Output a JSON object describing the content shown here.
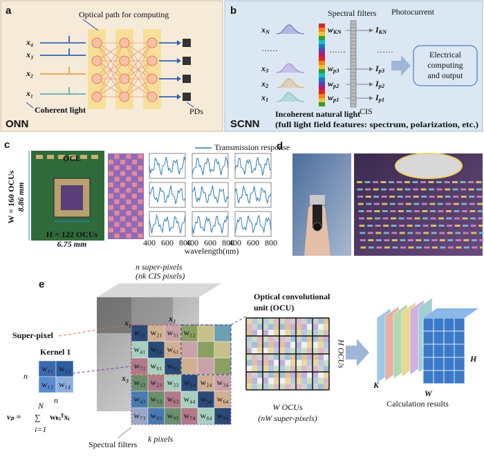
{
  "panel_a": {
    "label": "a",
    "caption": "Optical path for computing",
    "inputs": [
      "x₄",
      "x₃",
      "x₂",
      "x₁"
    ],
    "source": "Coherent light",
    "detectors": "PDs",
    "name": "ONN"
  },
  "panel_b": {
    "label": "b",
    "filters_caption": "Spectral filters",
    "current_caption": "Photocurrent",
    "inputs": [
      {
        "base": "x",
        "sub": "N"
      },
      {
        "base": "x",
        "sub": "3"
      },
      {
        "base": "x",
        "sub": "2"
      },
      {
        "base": "x",
        "sub": "1"
      }
    ],
    "weights": [
      {
        "base": "w",
        "sub": "KN"
      },
      {
        "base": "w",
        "sub": "p3"
      },
      {
        "base": "w",
        "sub": "p2"
      },
      {
        "base": "w",
        "sub": "p1"
      }
    ],
    "currents": [
      {
        "base": "I",
        "sub": "KN"
      },
      {
        "base": "I",
        "sub": "p3"
      },
      {
        "base": "I",
        "sub": "p2"
      },
      {
        "base": "I",
        "sub": "p1"
      }
    ],
    "ellipsis": "······",
    "output_box": [
      "Electrical",
      "computing",
      "and output"
    ],
    "sensor": "CIS",
    "source": "Incoherent natural light",
    "features": "(full light field features:  spectrum, polarization, etc.)",
    "name": "SCNN"
  },
  "panel_c": {
    "label": "c",
    "layer": "OCL",
    "width_ocus": "W = 160 OCUs",
    "width_mm": "8.86 mm",
    "height_ocus": "H = 122 OCUs",
    "height_mm": "6.75 mm",
    "legend": "Transmission response",
    "xticks": [
      400,
      600,
      800
    ],
    "xlabel": "wavelength(nm)"
  },
  "panel_d": {
    "label": "d"
  },
  "panel_e": {
    "label": "e",
    "super_pixels": "n super-pixels",
    "cis_pixels": "(nk CIS pixels)",
    "super_pixel": "Super-pixel",
    "kernel": "Kernel 1",
    "kernel_weights": [
      "w₁₁",
      "w₁₂",
      "w₁₃",
      "w₁₄"
    ],
    "kernel_size": "n",
    "inputs": [
      "x₁",
      "x₂",
      "x₃"
    ],
    "ocu": [
      "Optical convolutional",
      "unit (OCU)"
    ],
    "filter_grid": [
      [
        "w₁₁",
        "w₂₁",
        "w₃₁",
        "w₁₂",
        null,
        null
      ],
      [
        "w₄₁",
        "w₅₁",
        "w₆₁",
        null,
        null,
        null
      ],
      [
        "w₇₁",
        "w₈₁",
        "w₉₁",
        null,
        null,
        null
      ],
      [
        "w₁₃",
        "w₂₃",
        "w₃₃",
        "w₁₄",
        "w₂₄",
        "w₃₄"
      ],
      [
        "w₄₃",
        "w₅₃",
        "w₆₃",
        "w₄₄",
        "w₅₄",
        "w₆₄"
      ],
      [
        "w₇₃",
        "w₈₃",
        "w₉₃",
        "w₇₄",
        "w₈₄",
        "w₉₄"
      ]
    ],
    "height_ocus": "H OCUs",
    "width_ocus": "W OCUs",
    "width_pixels": "(nW super-pixels)",
    "result_k": "K",
    "result_w": "W",
    "result_h": "H",
    "results": "Calculation results",
    "formula": {
      "lhs": "vₚ =",
      "sum": "∑",
      "upper": "N",
      "lower": "i=1",
      "term": "wₖᵢᵀxᵢ"
    },
    "filters": "Spectral filters",
    "pixel_count": "k pixels"
  }
}
